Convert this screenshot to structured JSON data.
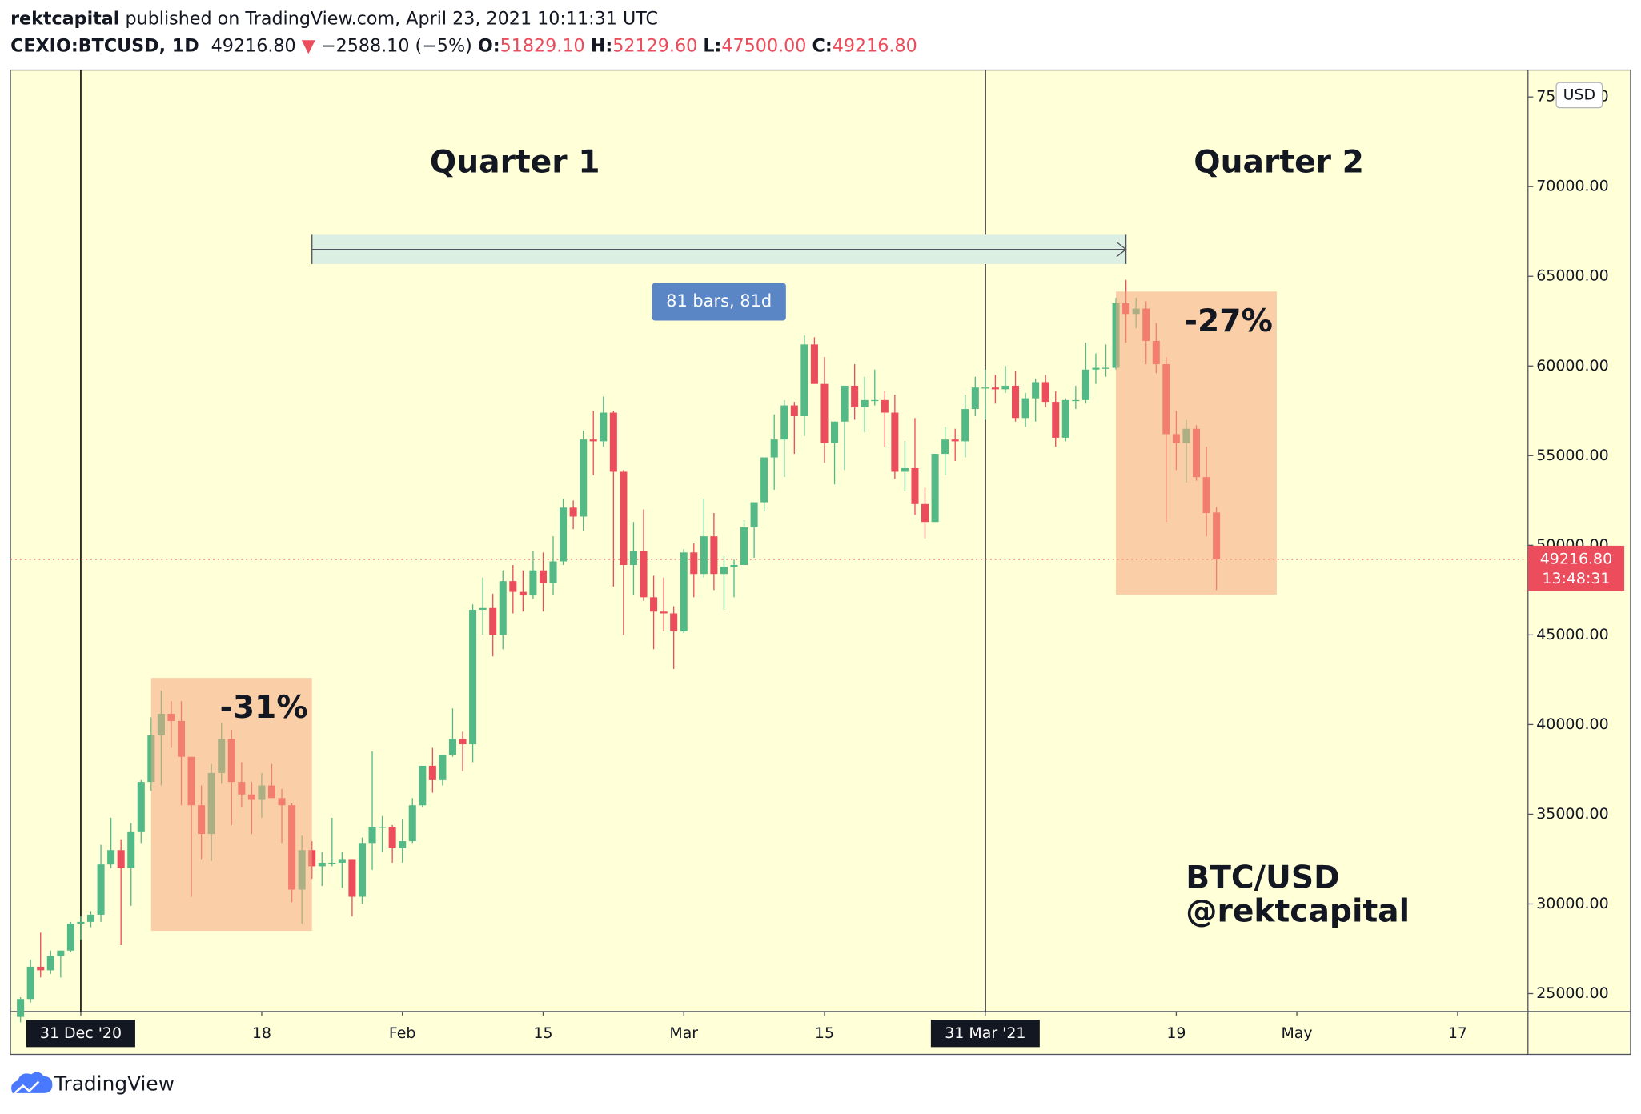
{
  "header": {
    "author": "rektcapital",
    "published": "published on TradingView.com, April 23, 2021 10:11:31 UTC",
    "symbol": "CEXIO:BTCUSD, 1D",
    "last": "49216.80",
    "arrow": "▼",
    "change": "−2588.10 (−5%)",
    "ohlc": [
      {
        "key": "O:",
        "value": "51829.10"
      },
      {
        "key": "H:",
        "value": "52129.60"
      },
      {
        "key": "L:",
        "value": "47500.00"
      },
      {
        "key": "C:",
        "value": "49216.80"
      }
    ]
  },
  "chart_data": {
    "type": "candlestick",
    "up_color": "#53b987",
    "down_color": "#eb4d5c",
    "currency": "USD",
    "x": [
      "2020-12-25",
      "2020-12-26",
      "2020-12-27",
      "2020-12-28",
      "2020-12-29",
      "2020-12-30",
      "2020-12-31",
      "2021-01-01",
      "2021-01-02",
      "2021-01-03",
      "2021-01-04",
      "2021-01-05",
      "2021-01-06",
      "2021-01-07",
      "2021-01-08",
      "2021-01-09",
      "2021-01-10",
      "2021-01-11",
      "2021-01-12",
      "2021-01-13",
      "2021-01-14",
      "2021-01-15",
      "2021-01-16",
      "2021-01-17",
      "2021-01-18",
      "2021-01-19",
      "2021-01-20",
      "2021-01-21",
      "2021-01-22",
      "2021-01-23",
      "2021-01-24",
      "2021-01-25",
      "2021-01-26",
      "2021-01-27",
      "2021-01-28",
      "2021-01-29",
      "2021-01-30",
      "2021-01-31",
      "2021-02-01",
      "2021-02-02",
      "2021-02-03",
      "2021-02-04",
      "2021-02-05",
      "2021-02-06",
      "2021-02-07",
      "2021-02-08",
      "2021-02-09",
      "2021-02-10",
      "2021-02-11",
      "2021-02-12",
      "2021-02-13",
      "2021-02-14",
      "2021-02-15",
      "2021-02-16",
      "2021-02-17",
      "2021-02-18",
      "2021-02-19",
      "2021-02-20",
      "2021-02-21",
      "2021-02-22",
      "2021-02-23",
      "2021-02-24",
      "2021-02-25",
      "2021-02-26",
      "2021-02-27",
      "2021-02-28",
      "2021-03-01",
      "2021-03-02",
      "2021-03-03",
      "2021-03-04",
      "2021-03-05",
      "2021-03-06",
      "2021-03-07",
      "2021-03-08",
      "2021-03-09",
      "2021-03-10",
      "2021-03-11",
      "2021-03-12",
      "2021-03-13",
      "2021-03-14",
      "2021-03-15",
      "2021-03-16",
      "2021-03-17",
      "2021-03-18",
      "2021-03-19",
      "2021-03-20",
      "2021-03-21",
      "2021-03-22",
      "2021-03-23",
      "2021-03-24",
      "2021-03-25",
      "2021-03-26",
      "2021-03-27",
      "2021-03-28",
      "2021-03-29",
      "2021-03-30",
      "2021-03-31",
      "2021-04-01",
      "2021-04-02",
      "2021-04-03",
      "2021-04-04",
      "2021-04-05",
      "2021-04-06",
      "2021-04-07",
      "2021-04-08",
      "2021-04-09",
      "2021-04-10",
      "2021-04-11",
      "2021-04-12",
      "2021-04-13",
      "2021-04-14",
      "2021-04-15",
      "2021-04-16",
      "2021-04-17",
      "2021-04-18",
      "2021-04-19",
      "2021-04-20",
      "2021-04-21",
      "2021-04-22",
      "2021-04-23"
    ],
    "open": [
      23700,
      24700,
      26500,
      26300,
      27100,
      27400,
      28900,
      29000,
      29400,
      32200,
      33000,
      32000,
      34000,
      36800,
      39400,
      40600,
      40200,
      38200,
      35500,
      33900,
      37300,
      39200,
      36800,
      36100,
      35800,
      36600,
      35900,
      35500,
      30800,
      33000,
      32100,
      32300,
      32300,
      32500,
      30400,
      33400,
      34300,
      34300,
      33100,
      33500,
      35500,
      37700,
      36900,
      38300,
      39200,
      38900,
      46400,
      46500,
      45000,
      48000,
      47400,
      47200,
      48600,
      47900,
      49100,
      52100,
      51600,
      55900,
      55800,
      57400,
      54100,
      48900,
      49700,
      47100,
      46300,
      46200,
      45200,
      49600,
      48400,
      50500,
      48400,
      48800,
      48900,
      51000,
      52400,
      54900,
      55900,
      57800,
      57200,
      61200,
      59000,
      55700,
      56900,
      58900,
      57700,
      58100,
      58100,
      57400,
      54100,
      54300,
      52300,
      51300,
      55100,
      55900,
      55800,
      57600,
      58800,
      58800,
      58700,
      58900,
      57100,
      58200,
      59100,
      58000,
      56000,
      58100,
      58100,
      59800,
      59900,
      59900,
      63500,
      62900,
      63200,
      61400,
      60100,
      56200,
      55700,
      56500,
      53800,
      51829.1
    ],
    "high": [
      24800,
      26900,
      28400,
      27400,
      27400,
      29000,
      29300,
      29600,
      33300,
      34800,
      33600,
      34500,
      36900,
      40400,
      41900,
      41300,
      41300,
      38200,
      36600,
      37800,
      40100,
      39700,
      37900,
      36800,
      37300,
      37800,
      36400,
      35600,
      33800,
      33500,
      32900,
      34800,
      32900,
      32500,
      33700,
      38500,
      34900,
      34400,
      34700,
      35900,
      37700,
      38700,
      38300,
      40900,
      39600,
      46700,
      48200,
      47300,
      48600,
      48900,
      48600,
      49700,
      49600,
      50500,
      52600,
      52500,
      56400,
      57500,
      58300,
      57500,
      54200,
      51300,
      52000,
      48300,
      48200,
      46600,
      49800,
      50100,
      52600,
      51800,
      49400,
      49200,
      51400,
      52400,
      54900,
      57300,
      58100,
      58000,
      61700,
      61600,
      60500,
      56900,
      58900,
      60100,
      59400,
      59800,
      58600,
      58400,
      55800,
      57100,
      53200,
      55100,
      56600,
      56500,
      58400,
      59400,
      59800,
      59500,
      60000,
      59700,
      58500,
      59300,
      59500,
      58600,
      58200,
      58900,
      61300,
      60700,
      61200,
      63800,
      64800,
      63800,
      63600,
      62400,
      60500,
      57500,
      57000,
      56700,
      55500,
      52129.6
    ],
    "low": [
      23400,
      24500,
      25900,
      26100,
      25900,
      27300,
      28000,
      28700,
      29000,
      32000,
      27700,
      29900,
      33400,
      36300,
      36600,
      38700,
      35500,
      30400,
      32500,
      32400,
      36700,
      34400,
      35400,
      33900,
      34800,
      35900,
      33400,
      30100,
      28900,
      31400,
      31000,
      32100,
      30900,
      29300,
      30000,
      31900,
      32900,
      32300,
      32300,
      33400,
      35400,
      36200,
      36600,
      38200,
      37400,
      37900,
      45000,
      43800,
      44200,
      46200,
      46300,
      47000,
      46300,
      47200,
      48900,
      50900,
      50800,
      53900,
      55500,
      47700,
      45000,
      47200,
      46900,
      44200,
      45200,
      43100,
      45100,
      47100,
      48200,
      47500,
      46400,
      47100,
      48900,
      49300,
      51900,
      53100,
      53800,
      55100,
      56100,
      59000,
      54600,
      53400,
      54200,
      57000,
      56300,
      57800,
      55500,
      53700,
      53000,
      51700,
      50400,
      51300,
      53900,
      54700,
      54900,
      57200,
      57000,
      57900,
      58500,
      56900,
      56600,
      56900,
      57700,
      55500,
      55800,
      57600,
      57900,
      59000,
      59400,
      59800,
      61300,
      62100,
      60100,
      59600,
      51300,
      54200,
      53500,
      53600,
      50500,
      47500
    ],
    "close": [
      24700,
      26500,
      26300,
      27100,
      27400,
      28900,
      29000,
      29400,
      32200,
      33000,
      32000,
      34000,
      36800,
      39400,
      40600,
      40200,
      38200,
      35500,
      33900,
      37300,
      39200,
      36800,
      36100,
      35800,
      36600,
      35900,
      35500,
      30800,
      33000,
      32100,
      32300,
      32300,
      32500,
      30400,
      33400,
      34300,
      34300,
      33100,
      33500,
      35500,
      37700,
      36900,
      38300,
      39200,
      38900,
      46400,
      46500,
      45000,
      48000,
      47400,
      47200,
      48600,
      47900,
      49100,
      52100,
      51600,
      55900,
      55800,
      57400,
      54100,
      48900,
      49700,
      47100,
      46300,
      46200,
      45200,
      49600,
      48400,
      50500,
      48400,
      48800,
      48900,
      51000,
      52400,
      54900,
      55900,
      57800,
      57200,
      61200,
      59000,
      55700,
      56900,
      58900,
      57700,
      58100,
      58100,
      57400,
      54100,
      54300,
      52300,
      51300,
      55100,
      55900,
      55800,
      57600,
      58800,
      58800,
      58700,
      58900,
      57100,
      58200,
      59100,
      58000,
      56000,
      58100,
      58100,
      59800,
      59900,
      59900,
      63500,
      62900,
      63200,
      61400,
      60100,
      56200,
      55700,
      56500,
      53800,
      51800,
      49216.8
    ],
    "xlim": [
      "2020-12-24",
      "2021-05-24"
    ],
    "ylim": [
      24000,
      76500
    ],
    "xticks": [
      {
        "value": "2020-12-31",
        "label": "31 Dec '20"
      },
      {
        "value": "2021-01-18",
        "label": "18"
      },
      {
        "value": "2021-02-01",
        "label": "Feb"
      },
      {
        "value": "2021-02-15",
        "label": "15"
      },
      {
        "value": "2021-03-01",
        "label": "Mar"
      },
      {
        "value": "2021-03-15",
        "label": "15"
      },
      {
        "value": "2021-03-31",
        "label": "31 Mar '21"
      },
      {
        "value": "2021-04-19",
        "label": "19"
      },
      {
        "value": "2021-05-01",
        "label": "May"
      },
      {
        "value": "2021-05-17",
        "label": "17"
      }
    ],
    "yticks": [
      {
        "value": 25000,
        "label": "25000.00"
      },
      {
        "value": 30000,
        "label": "30000.00"
      },
      {
        "value": 35000,
        "label": "35000.00"
      },
      {
        "value": 40000,
        "label": "40000.00"
      },
      {
        "value": 45000,
        "label": "45000.00"
      },
      {
        "value": 50000,
        "label": "50000.00"
      },
      {
        "value": 55000,
        "label": "55000.00"
      },
      {
        "value": 60000,
        "label": "60000.00"
      },
      {
        "value": 65000,
        "label": "65000.00"
      },
      {
        "value": 70000,
        "label": "70000.00"
      },
      {
        "value": 75000,
        "label": "75000.00"
      }
    ],
    "vlines": [
      "2020-12-31",
      "2021-03-31"
    ],
    "last_price": {
      "value": 49216.8,
      "label": "49216.80",
      "countdown": "13:48:31",
      "color": "#eb4d5c"
    },
    "boxes": [
      {
        "label": "-31%",
        "x": [
          "2021-01-07",
          "2021-01-23"
        ],
        "y": [
          28500,
          42600
        ],
        "color": "#f6a77f"
      },
      {
        "label": "-27%",
        "x": [
          "2021-04-13",
          "2021-04-29"
        ],
        "y": [
          47250,
          64150
        ],
        "color": "#f6a77f"
      }
    ],
    "date_range": {
      "label": "81 bars, 81d",
      "x": [
        "2021-01-23",
        "2021-04-14"
      ],
      "y": 66500,
      "color": "#dcefe3",
      "label_color": "#5a86c6"
    },
    "annotations": [
      "Quarter 1",
      "Quarter 2",
      "BTC/USD",
      "@rektcapital"
    ]
  },
  "footer": {
    "brand": "TradingView"
  }
}
